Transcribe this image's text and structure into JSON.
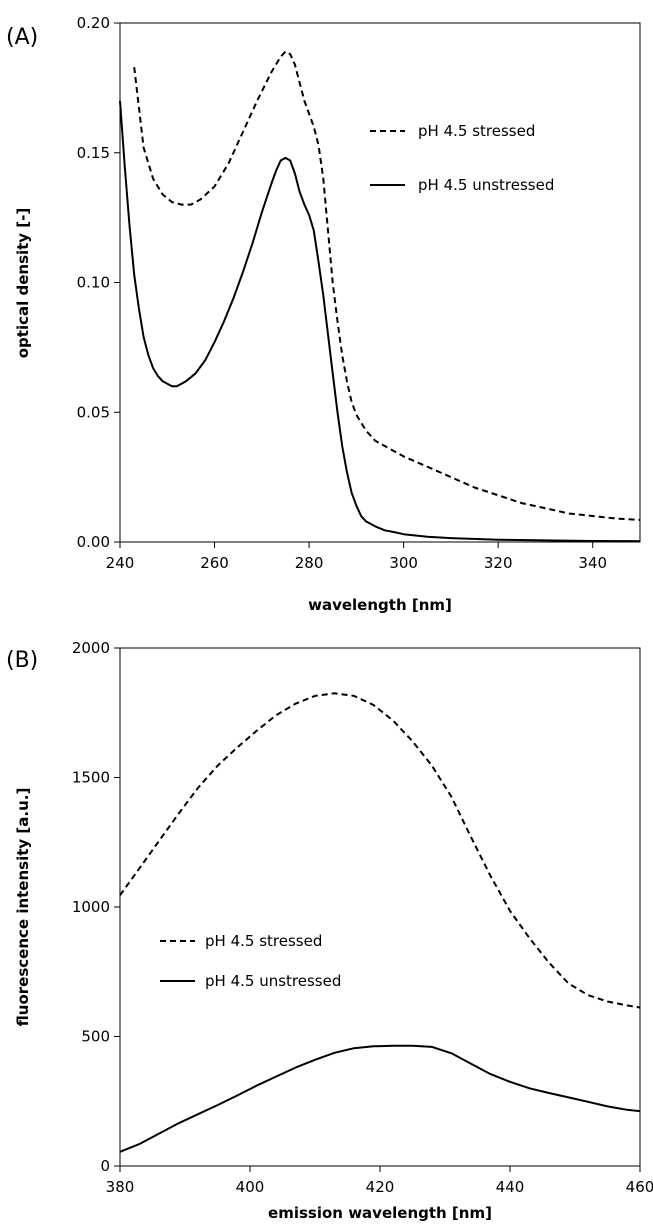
{
  "chart_data": [
    {
      "type": "line",
      "panel_label": "(A)",
      "xlabel": "wavelength [nm]",
      "ylabel": "optical density [-]",
      "xlim": [
        240,
        350
      ],
      "ylim": [
        0,
        0.2
      ],
      "xticks": [
        240,
        260,
        280,
        300,
        320,
        340
      ],
      "yticks": [
        0,
        0.05,
        0.1,
        0.15,
        0.2
      ],
      "xtick_labels": [
        "240",
        "260",
        "280",
        "300",
        "320",
        "340"
      ],
      "ytick_labels": [
        "0.00",
        "0.05",
        "0.10",
        "0.15",
        "0.20"
      ],
      "grid": false,
      "legend_position": "top-right",
      "series": [
        {
          "name": "pH 4.5 stressed",
          "style": "dashed",
          "x": [
            243,
            245,
            247,
            249,
            251,
            253,
            255,
            257,
            260,
            263,
            266,
            269,
            272,
            274,
            275,
            276,
            277,
            278,
            279,
            280,
            281,
            282,
            283,
            284,
            285,
            286,
            287,
            288,
            289,
            290,
            292,
            294,
            296,
            298,
            300,
            305,
            310,
            315,
            320,
            325,
            330,
            335,
            340,
            345,
            350
          ],
          "y": [
            0.183,
            0.152,
            0.14,
            0.134,
            0.131,
            0.13,
            0.13,
            0.132,
            0.137,
            0.146,
            0.158,
            0.17,
            0.181,
            0.187,
            0.189,
            0.188,
            0.184,
            0.177,
            0.17,
            0.165,
            0.16,
            0.153,
            0.14,
            0.12,
            0.1,
            0.085,
            0.072,
            0.062,
            0.054,
            0.049,
            0.043,
            0.039,
            0.037,
            0.035,
            0.033,
            0.029,
            0.025,
            0.021,
            0.018,
            0.015,
            0.013,
            0.011,
            0.01,
            0.009,
            0.0085
          ]
        },
        {
          "name": "pH 4.5 unstressed",
          "style": "solid",
          "x": [
            240,
            241,
            242,
            243,
            244,
            245,
            246,
            247,
            248,
            249,
            250,
            251,
            252,
            253,
            254,
            256,
            258,
            260,
            262,
            264,
            266,
            268,
            270,
            272,
            273,
            274,
            275,
            276,
            277,
            278,
            279,
            280,
            281,
            282,
            283,
            284,
            285,
            286,
            287,
            288,
            289,
            290,
            291,
            292,
            294,
            296,
            298,
            300,
            305,
            310,
            320,
            330,
            340,
            350
          ],
          "y": [
            0.17,
            0.145,
            0.122,
            0.103,
            0.09,
            0.079,
            0.072,
            0.067,
            0.064,
            0.062,
            0.061,
            0.06,
            0.06,
            0.061,
            0.062,
            0.065,
            0.07,
            0.077,
            0.085,
            0.094,
            0.104,
            0.115,
            0.127,
            0.138,
            0.143,
            0.147,
            0.148,
            0.147,
            0.142,
            0.135,
            0.13,
            0.126,
            0.12,
            0.108,
            0.095,
            0.08,
            0.065,
            0.05,
            0.037,
            0.027,
            0.019,
            0.014,
            0.01,
            0.008,
            0.006,
            0.0045,
            0.0038,
            0.003,
            0.002,
            0.0015,
            0.0009,
            0.0006,
            0.0004,
            0.0003
          ]
        }
      ]
    },
    {
      "type": "line",
      "panel_label": "(B)",
      "xlabel": "emission wavelength [nm]",
      "ylabel": "fluorescence intensity [a.u.]",
      "xlim": [
        380,
        460
      ],
      "ylim": [
        0,
        2000
      ],
      "xticks": [
        380,
        400,
        420,
        440,
        460
      ],
      "yticks": [
        0,
        500,
        1000,
        1500,
        2000
      ],
      "xtick_labels": [
        "380",
        "400",
        "420",
        "440",
        "460"
      ],
      "ytick_labels": [
        "0",
        "500",
        "1000",
        "1500",
        "2000"
      ],
      "grid": false,
      "legend_position": "center-left",
      "series": [
        {
          "name": "pH 4.5 stressed",
          "style": "dashed",
          "x": [
            380,
            383,
            386,
            389,
            392,
            395,
            398,
            401,
            404,
            407,
            410,
            413,
            416,
            419,
            422,
            425,
            428,
            431,
            434,
            437,
            440,
            443,
            446,
            449,
            452,
            455,
            458,
            460
          ],
          "y": [
            1045,
            1150,
            1255,
            1360,
            1460,
            1545,
            1615,
            1680,
            1740,
            1785,
            1815,
            1825,
            1815,
            1780,
            1720,
            1640,
            1545,
            1425,
            1270,
            1120,
            985,
            880,
            785,
            705,
            660,
            635,
            620,
            612
          ]
        },
        {
          "name": "pH 4.5 unstressed",
          "style": "solid",
          "x": [
            380,
            383,
            386,
            389,
            392,
            395,
            398,
            401,
            404,
            407,
            410,
            413,
            416,
            419,
            422,
            425,
            428,
            431,
            434,
            437,
            440,
            443,
            446,
            449,
            452,
            455,
            458,
            460
          ],
          "y": [
            55,
            85,
            125,
            165,
            200,
            235,
            272,
            310,
            345,
            380,
            410,
            437,
            455,
            462,
            464,
            464,
            460,
            435,
            395,
            355,
            325,
            300,
            282,
            265,
            248,
            230,
            217,
            212
          ]
        }
      ]
    }
  ]
}
